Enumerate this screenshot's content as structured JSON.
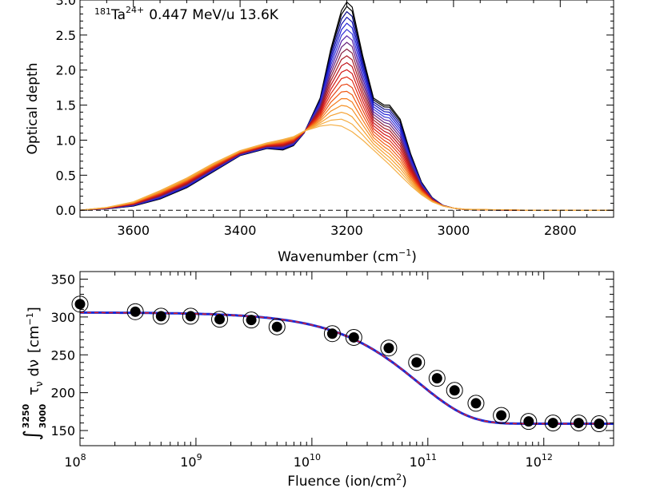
{
  "chart_data": [
    {
      "type": "line",
      "annotation": {
        "isotope_mass": "181",
        "element": "Ta",
        "charge": "24+",
        "rest": "0.447 MeV/u 13.6K"
      },
      "xlabel": {
        "main": "Wavenumber (cm",
        "sup": "−1",
        "end": ")"
      },
      "ylabel": "Optical depth",
      "xlim": [
        3700,
        2700
      ],
      "ylim": [
        -0.1,
        3.0
      ],
      "xticks": [
        3600,
        3400,
        3200,
        3000,
        2800
      ],
      "xtick_labels": [
        "3600",
        "3400",
        "3200",
        "3000",
        "2800"
      ],
      "yticks": [
        0.0,
        0.5,
        1.0,
        1.5,
        2.0,
        2.5,
        3.0
      ],
      "ytick_labels": [
        "0.0",
        "0.5",
        "1.0",
        "1.5",
        "2.0",
        "2.5",
        "3.0"
      ],
      "baseline": 0.0,
      "series_model": {
        "x": [
          3700,
          3650,
          3600,
          3550,
          3500,
          3450,
          3400,
          3350,
          3320,
          3300,
          3280,
          3250,
          3230,
          3210,
          3200,
          3190,
          3170,
          3150,
          3130,
          3120,
          3100,
          3080,
          3060,
          3040,
          3020,
          3000,
          2980,
          2950,
          2900,
          2850,
          2800,
          2750,
          2700
        ],
        "y_initial": [
          0.0,
          0.02,
          0.06,
          0.16,
          0.32,
          0.55,
          0.78,
          0.88,
          0.86,
          0.92,
          1.1,
          1.6,
          2.3,
          2.85,
          2.97,
          2.9,
          2.2,
          1.6,
          1.5,
          1.5,
          1.3,
          0.8,
          0.4,
          0.18,
          0.07,
          0.03,
          0.01,
          0.005,
          0.0,
          0.0,
          0.0,
          0.0,
          0.0
        ],
        "y_final": [
          0.0,
          0.04,
          0.12,
          0.28,
          0.46,
          0.67,
          0.85,
          0.96,
          1.01,
          1.05,
          1.13,
          1.2,
          1.22,
          1.2,
          1.16,
          1.12,
          1.0,
          0.86,
          0.72,
          0.65,
          0.5,
          0.35,
          0.22,
          0.12,
          0.06,
          0.03,
          0.015,
          0.01,
          0.005,
          0.0,
          0.0,
          0.0,
          0.0
        ]
      },
      "series_colors": [
        "#000000",
        "#000000",
        "#0c0c8a",
        "#1515b5",
        "#2222d6",
        "#3535d6",
        "#5522a8",
        "#66227a",
        "#882244",
        "#aa1a22",
        "#c0141a",
        "#d41a18",
        "#e02a14",
        "#e84414",
        "#f05a14",
        "#f57a1c",
        "#f59024",
        "#f5a030",
        "#f5ac40",
        "#f5b048"
      ]
    },
    {
      "type": "scatter",
      "xlabel": {
        "main": "Fluence (ion/cm",
        "sup": "2",
        "end": ")"
      },
      "ylabel": {
        "integral_upper": "3250",
        "integral_lower": "3000",
        "integrand": "τ",
        "subscript": "ν",
        "differential": "dν",
        "unit": "[cm",
        "unit_sup": "−1",
        "unit_end": "]"
      },
      "xscale": "log",
      "xlim": [
        100000000.0,
        4000000000000.0
      ],
      "ylim": [
        130,
        360
      ],
      "xticks": [
        100000000.0,
        1000000000.0,
        10000000000.0,
        100000000000.0,
        1000000000000.0
      ],
      "xtick_bases": [
        "10",
        "10",
        "10",
        "10",
        "10"
      ],
      "xtick_exponents": [
        "8",
        "9",
        "10",
        "11",
        "12"
      ],
      "yticks": [
        150,
        200,
        250,
        300,
        350
      ],
      "ytick_labels": [
        "150",
        "200",
        "250",
        "300",
        "350"
      ],
      "points": [
        {
          "x": 100000000.0,
          "y": 317
        },
        {
          "x": 300000000.0,
          "y": 307
        },
        {
          "x": 500000000.0,
          "y": 301
        },
        {
          "x": 900000000.0,
          "y": 301
        },
        {
          "x": 1600000000.0,
          "y": 297
        },
        {
          "x": 3000000000.0,
          "y": 296
        },
        {
          "x": 5000000000.0,
          "y": 287
        },
        {
          "x": 15000000000.0,
          "y": 278
        },
        {
          "x": 23000000000.0,
          "y": 273
        },
        {
          "x": 46000000000.0,
          "y": 259
        },
        {
          "x": 80000000000.0,
          "y": 240
        },
        {
          "x": 120000000000.0,
          "y": 219
        },
        {
          "x": 170000000000.0,
          "y": 203
        },
        {
          "x": 260000000000.0,
          "y": 186
        },
        {
          "x": 430000000000.0,
          "y": 170
        },
        {
          "x": 740000000000.0,
          "y": 162
        },
        {
          "x": 1200000000000.0,
          "y": 160
        },
        {
          "x": 2000000000000.0,
          "y": 160
        },
        {
          "x": 3000000000000.0,
          "y": 159
        }
      ],
      "fit": {
        "y0": 306,
        "y_inf": 159,
        "sigma": 1.2e-11
      },
      "fit_colors": {
        "outer": "#1a2bd6",
        "inner": "#e0202a"
      }
    }
  ]
}
